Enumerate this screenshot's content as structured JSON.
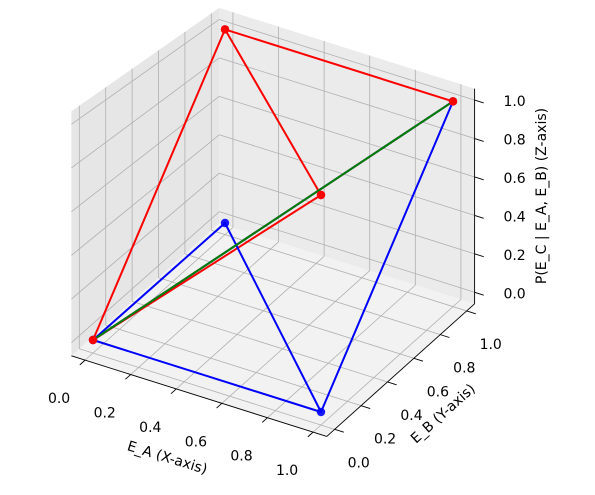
{
  "chart_data": {
    "type": "3d-line",
    "xlabel": "E_A (X-axis)",
    "ylabel": "E_B (Y-axis)",
    "zlabel": "P(E_C | E_A, E_B) (Z-axis)",
    "xticks": [
      "0.0",
      "0.2",
      "0.4",
      "0.6",
      "0.8",
      "1.0"
    ],
    "yticks": [
      "0.0",
      "0.2",
      "0.4",
      "0.6",
      "0.8",
      "1.0"
    ],
    "zticks": [
      "0.0",
      "0.2",
      "0.4",
      "0.6",
      "0.8",
      "1.0"
    ],
    "xlim": [
      0,
      1
    ],
    "ylim": [
      0,
      1
    ],
    "zlim": [
      0,
      1
    ],
    "grid": true,
    "series": [
      {
        "color": "#ff0000",
        "marker": "circle",
        "segments": [
          [
            [
              0,
              0,
              0
            ],
            [
              0,
              1,
              1
            ]
          ],
          [
            [
              0,
              1,
              1
            ],
            [
              1,
              1,
              1
            ]
          ],
          [
            [
              1,
              1,
              1
            ],
            [
              0,
              0,
              0
            ]
          ],
          [
            [
              0,
              1,
              1
            ],
            [
              1,
              0,
              1
            ]
          ],
          [
            [
              1,
              0,
              1
            ],
            [
              0,
              0,
              0
            ]
          ]
        ]
      },
      {
        "color": "#0000ff",
        "marker": "circle",
        "segments": [
          [
            [
              0,
              0,
              0
            ],
            [
              1,
              0,
              0
            ]
          ],
          [
            [
              1,
              0,
              0
            ],
            [
              1,
              1,
              1
            ]
          ],
          [
            [
              1,
              1,
              1
            ],
            [
              0,
              0,
              0
            ]
          ],
          [
            [
              0,
              0,
              0
            ],
            [
              0,
              1,
              0
            ]
          ],
          [
            [
              0,
              1,
              0
            ],
            [
              1,
              0,
              0
            ]
          ]
        ]
      },
      {
        "color": "#008000",
        "marker": "none",
        "segments": [
          [
            [
              0,
              0,
              0
            ],
            [
              1,
              1,
              1
            ]
          ]
        ]
      }
    ]
  }
}
